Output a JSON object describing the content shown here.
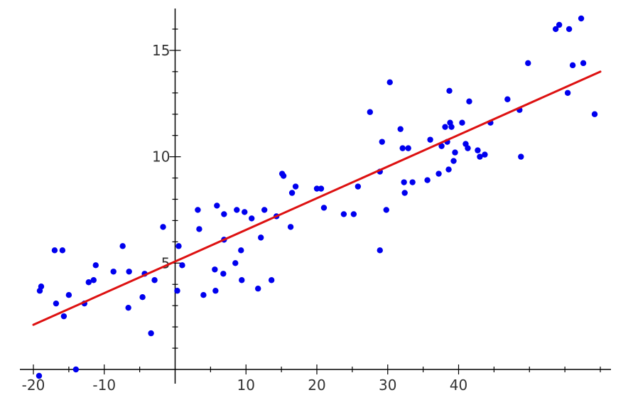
{
  "chart_data": {
    "type": "scatter",
    "title": "",
    "xlabel": "",
    "ylabel": "",
    "xlim": [
      -20,
      60
    ],
    "ylim": [
      0,
      16.7
    ],
    "grid": false,
    "legend": "none",
    "colors": {
      "points": "#0000ee",
      "fit_line": "#dd1111",
      "axes": "#000000"
    },
    "x_ticks": [
      -20,
      -10,
      10,
      20,
      30,
      40
    ],
    "x_tick_labels": [
      "-20",
      "-10",
      "10",
      "20",
      "30",
      "40"
    ],
    "x_minor_ticks": [
      -15,
      -5,
      5,
      15,
      25,
      35,
      45,
      50,
      55,
      60
    ],
    "y_ticks": [
      5,
      10,
      15
    ],
    "y_tick_labels": [
      "5",
      "10",
      "15"
    ],
    "y_minor_ticks": [
      1,
      2,
      3,
      4,
      6,
      7,
      8,
      9,
      11,
      12,
      13,
      14,
      16
    ],
    "fit_line": {
      "x": [
        -20,
        60
      ],
      "y": [
        2.1,
        14.0
      ]
    },
    "points": [
      {
        "x": -19.2,
        "y": -0.3
      },
      {
        "x": -19.1,
        "y": 3.7
      },
      {
        "x": -18.9,
        "y": 3.9
      },
      {
        "x": -17.0,
        "y": 5.6
      },
      {
        "x": -16.8,
        "y": 3.1
      },
      {
        "x": -15.9,
        "y": 5.6
      },
      {
        "x": -15.7,
        "y": 2.5
      },
      {
        "x": -15.0,
        "y": 3.5
      },
      {
        "x": -14.0,
        "y": 0.0
      },
      {
        "x": -12.8,
        "y": 3.1
      },
      {
        "x": -12.2,
        "y": 4.1
      },
      {
        "x": -11.5,
        "y": 4.2
      },
      {
        "x": -11.2,
        "y": 4.9
      },
      {
        "x": -8.7,
        "y": 4.6
      },
      {
        "x": -7.4,
        "y": 5.8
      },
      {
        "x": -6.6,
        "y": 2.9
      },
      {
        "x": -6.5,
        "y": 4.6
      },
      {
        "x": -4.6,
        "y": 3.4
      },
      {
        "x": -4.3,
        "y": 4.5
      },
      {
        "x": -3.4,
        "y": 1.7
      },
      {
        "x": -2.9,
        "y": 4.2
      },
      {
        "x": -1.7,
        "y": 6.7
      },
      {
        "x": 0.3,
        "y": 3.7
      },
      {
        "x": 0.5,
        "y": 5.8
      },
      {
        "x": 1.0,
        "y": 4.9
      },
      {
        "x": 3.2,
        "y": 7.5
      },
      {
        "x": 3.4,
        "y": 6.6
      },
      {
        "x": 4.0,
        "y": 3.5
      },
      {
        "x": 5.6,
        "y": 4.7
      },
      {
        "x": 5.7,
        "y": 3.7
      },
      {
        "x": 5.9,
        "y": 7.7
      },
      {
        "x": 6.8,
        "y": 4.5
      },
      {
        "x": 6.9,
        "y": 6.1
      },
      {
        "x": 6.9,
        "y": 7.3
      },
      {
        "x": 8.5,
        "y": 5.0
      },
      {
        "x": 8.7,
        "y": 7.5
      },
      {
        "x": 9.3,
        "y": 5.6
      },
      {
        "x": 9.4,
        "y": 4.2
      },
      {
        "x": 9.8,
        "y": 7.4
      },
      {
        "x": 10.8,
        "y": 7.1
      },
      {
        "x": 11.7,
        "y": 3.8
      },
      {
        "x": 12.1,
        "y": 6.2
      },
      {
        "x": 12.6,
        "y": 7.5
      },
      {
        "x": 13.6,
        "y": 4.2
      },
      {
        "x": 14.3,
        "y": 7.2
      },
      {
        "x": 15.1,
        "y": 9.2
      },
      {
        "x": 15.3,
        "y": 9.1
      },
      {
        "x": 16.3,
        "y": 6.7
      },
      {
        "x": 16.5,
        "y": 8.3
      },
      {
        "x": 17.0,
        "y": 8.6
      },
      {
        "x": 20.0,
        "y": 8.5
      },
      {
        "x": 20.6,
        "y": 8.5
      },
      {
        "x": 21.0,
        "y": 7.6
      },
      {
        "x": 23.8,
        "y": 7.3
      },
      {
        "x": 25.2,
        "y": 7.3
      },
      {
        "x": 25.8,
        "y": 8.6
      },
      {
        "x": 27.5,
        "y": 12.1
      },
      {
        "x": 28.9,
        "y": 5.6
      },
      {
        "x": 28.9,
        "y": 9.3
      },
      {
        "x": 29.2,
        "y": 10.7
      },
      {
        "x": 29.8,
        "y": 7.5
      },
      {
        "x": 30.3,
        "y": 13.5
      },
      {
        "x": 31.8,
        "y": 11.3
      },
      {
        "x": 32.1,
        "y": 10.4
      },
      {
        "x": 32.3,
        "y": 8.8
      },
      {
        "x": 32.4,
        "y": 8.3
      },
      {
        "x": 32.9,
        "y": 10.4
      },
      {
        "x": 33.5,
        "y": 8.8
      },
      {
        "x": 35.6,
        "y": 8.9
      },
      {
        "x": 36.0,
        "y": 10.8
      },
      {
        "x": 37.2,
        "y": 9.2
      },
      {
        "x": 37.6,
        "y": 10.5
      },
      {
        "x": 38.1,
        "y": 11.4
      },
      {
        "x": 38.4,
        "y": 10.7
      },
      {
        "x": 38.6,
        "y": 9.4
      },
      {
        "x": 38.7,
        "y": 13.1
      },
      {
        "x": 38.8,
        "y": 11.6
      },
      {
        "x": 39.0,
        "y": 11.4
      },
      {
        "x": 39.3,
        "y": 9.8
      },
      {
        "x": 39.5,
        "y": 10.2
      },
      {
        "x": 40.5,
        "y": 11.6
      },
      {
        "x": 41.0,
        "y": 10.6
      },
      {
        "x": 41.3,
        "y": 10.4
      },
      {
        "x": 41.5,
        "y": 12.6
      },
      {
        "x": 42.7,
        "y": 10.3
      },
      {
        "x": 43.0,
        "y": 10.0
      },
      {
        "x": 43.7,
        "y": 10.1
      },
      {
        "x": 44.5,
        "y": 11.6
      },
      {
        "x": 46.9,
        "y": 12.7
      },
      {
        "x": 48.6,
        "y": 12.2
      },
      {
        "x": 48.8,
        "y": 10.0
      },
      {
        "x": 49.8,
        "y": 14.4
      },
      {
        "x": 53.7,
        "y": 16.0
      },
      {
        "x": 54.2,
        "y": 16.2
      },
      {
        "x": 55.4,
        "y": 13.0
      },
      {
        "x": 55.6,
        "y": 16.0
      },
      {
        "x": 56.1,
        "y": 14.3
      },
      {
        "x": 57.3,
        "y": 16.5
      },
      {
        "x": 57.6,
        "y": 14.4
      },
      {
        "x": 59.2,
        "y": 12.0
      }
    ]
  }
}
